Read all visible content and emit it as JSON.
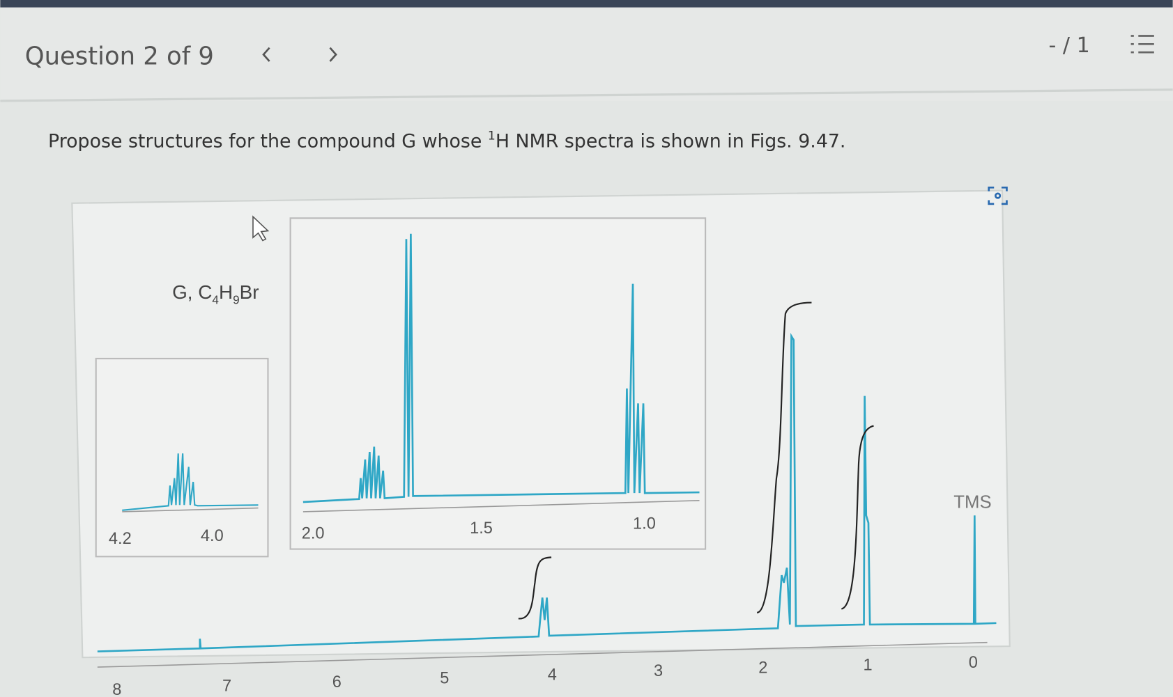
{
  "header": {
    "title": "Question 2 of 9",
    "score": "- / 1"
  },
  "question": {
    "text_before": "Propose structures for the compound G whose ",
    "superscript": "1",
    "text_after": "H NMR spectra is shown in Figs. 9.47."
  },
  "figure": {
    "formula": [
      "G, C",
      "4",
      "H",
      "9",
      "Br"
    ],
    "tms_label": "TMS",
    "axis_labels": [
      "8",
      "7",
      "6",
      "5",
      "4",
      "3",
      "2",
      "1",
      "0"
    ],
    "inset_left_labels": [
      "4.2",
      "4.0"
    ],
    "inset_right_labels": [
      "2.0",
      "1.5",
      "1.0"
    ]
  }
}
